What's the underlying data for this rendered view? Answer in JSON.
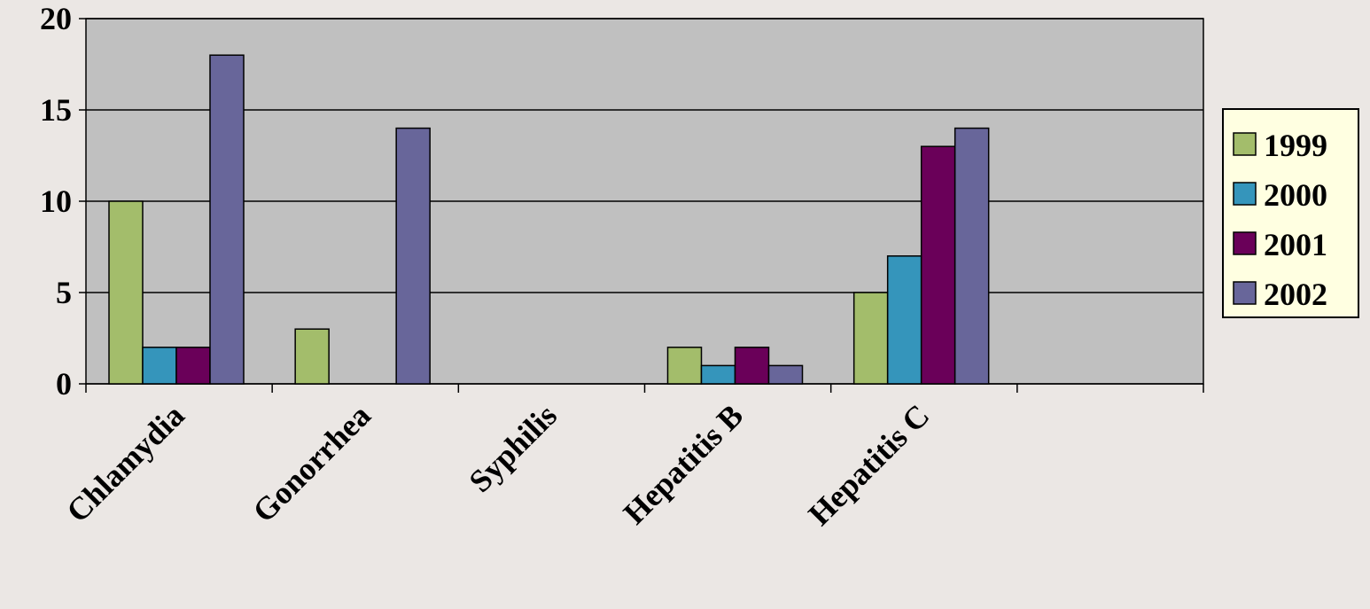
{
  "colors": {
    "background": "#ebe7e4",
    "plot_area": "#c0c0c0",
    "gridline": "#000000",
    "legend_background": "#ffffe1",
    "series": {
      "1999": "#a3bd6b",
      "2000": "#3595bb",
      "2001": "#6a0059",
      "2002": "#68669a"
    }
  },
  "chart_data": {
    "type": "bar",
    "title": "",
    "xlabel": "",
    "ylabel": "",
    "categories": [
      "Chlamydia",
      "Gonorrhea",
      "Syphilis",
      "Hepatitis B",
      "Hepatitis C",
      ""
    ],
    "series": [
      {
        "name": "1999",
        "values": [
          10,
          3,
          0,
          2,
          5,
          0
        ]
      },
      {
        "name": "2000",
        "values": [
          2,
          0,
          0,
          1,
          7,
          0
        ]
      },
      {
        "name": "2001",
        "values": [
          2,
          0,
          0,
          2,
          13,
          0
        ]
      },
      {
        "name": "2002",
        "values": [
          18,
          14,
          0,
          1,
          14,
          0
        ]
      }
    ],
    "ylim": [
      0,
      20
    ],
    "yticks": [
      "0",
      "5",
      "10",
      "15",
      "20"
    ],
    "grid": true,
    "legend_position": "right"
  }
}
